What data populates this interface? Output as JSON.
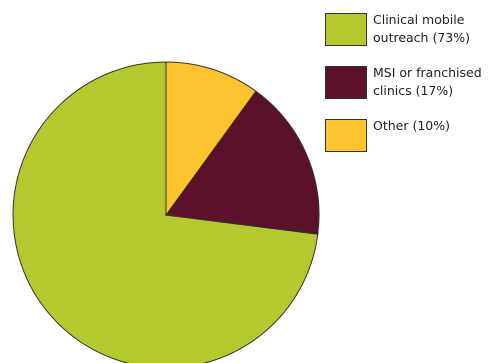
{
  "chart_data": {
    "type": "pie",
    "categories": [
      "Clinical mobile outreach (73%)",
      "MSI or franchised clinics (17%)",
      "Other (10%)"
    ],
    "values": [
      73,
      17,
      10
    ],
    "colors": [
      "#b5c92e",
      "#5b1129",
      "#fdc430"
    ]
  }
}
